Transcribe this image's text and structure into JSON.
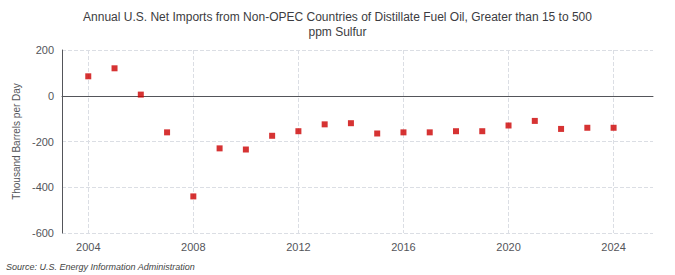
{
  "chart_data": {
    "type": "scatter",
    "title": "Annual U.S. Net Imports from Non-OPEC Countries of Distillate Fuel Oil, Greater than 15 to 500\nppm Sulfur",
    "ylabel": "Thousand Barrels per Day",
    "source": "Source: U.S. Energy Information Administration",
    "x": [
      2004,
      2005,
      2006,
      2007,
      2008,
      2009,
      2010,
      2011,
      2012,
      2013,
      2014,
      2015,
      2016,
      2017,
      2018,
      2019,
      2020,
      2021,
      2022,
      2023,
      2024
    ],
    "values": [
      85,
      120,
      5,
      -160,
      -440,
      -230,
      -235,
      -175,
      -155,
      -125,
      -120,
      -165,
      -160,
      -160,
      -155,
      -155,
      -130,
      -110,
      -145,
      -140,
      -140
    ],
    "color": "#cc0000",
    "marker": "square",
    "xlim": [
      2003.0,
      2025.5
    ],
    "xticks": [
      2004,
      2008,
      2012,
      2016,
      2020,
      2024
    ],
    "ylim": [
      -600,
      200
    ],
    "yticks": [
      -600,
      -400,
      -200,
      0,
      200
    ],
    "grid": true
  }
}
